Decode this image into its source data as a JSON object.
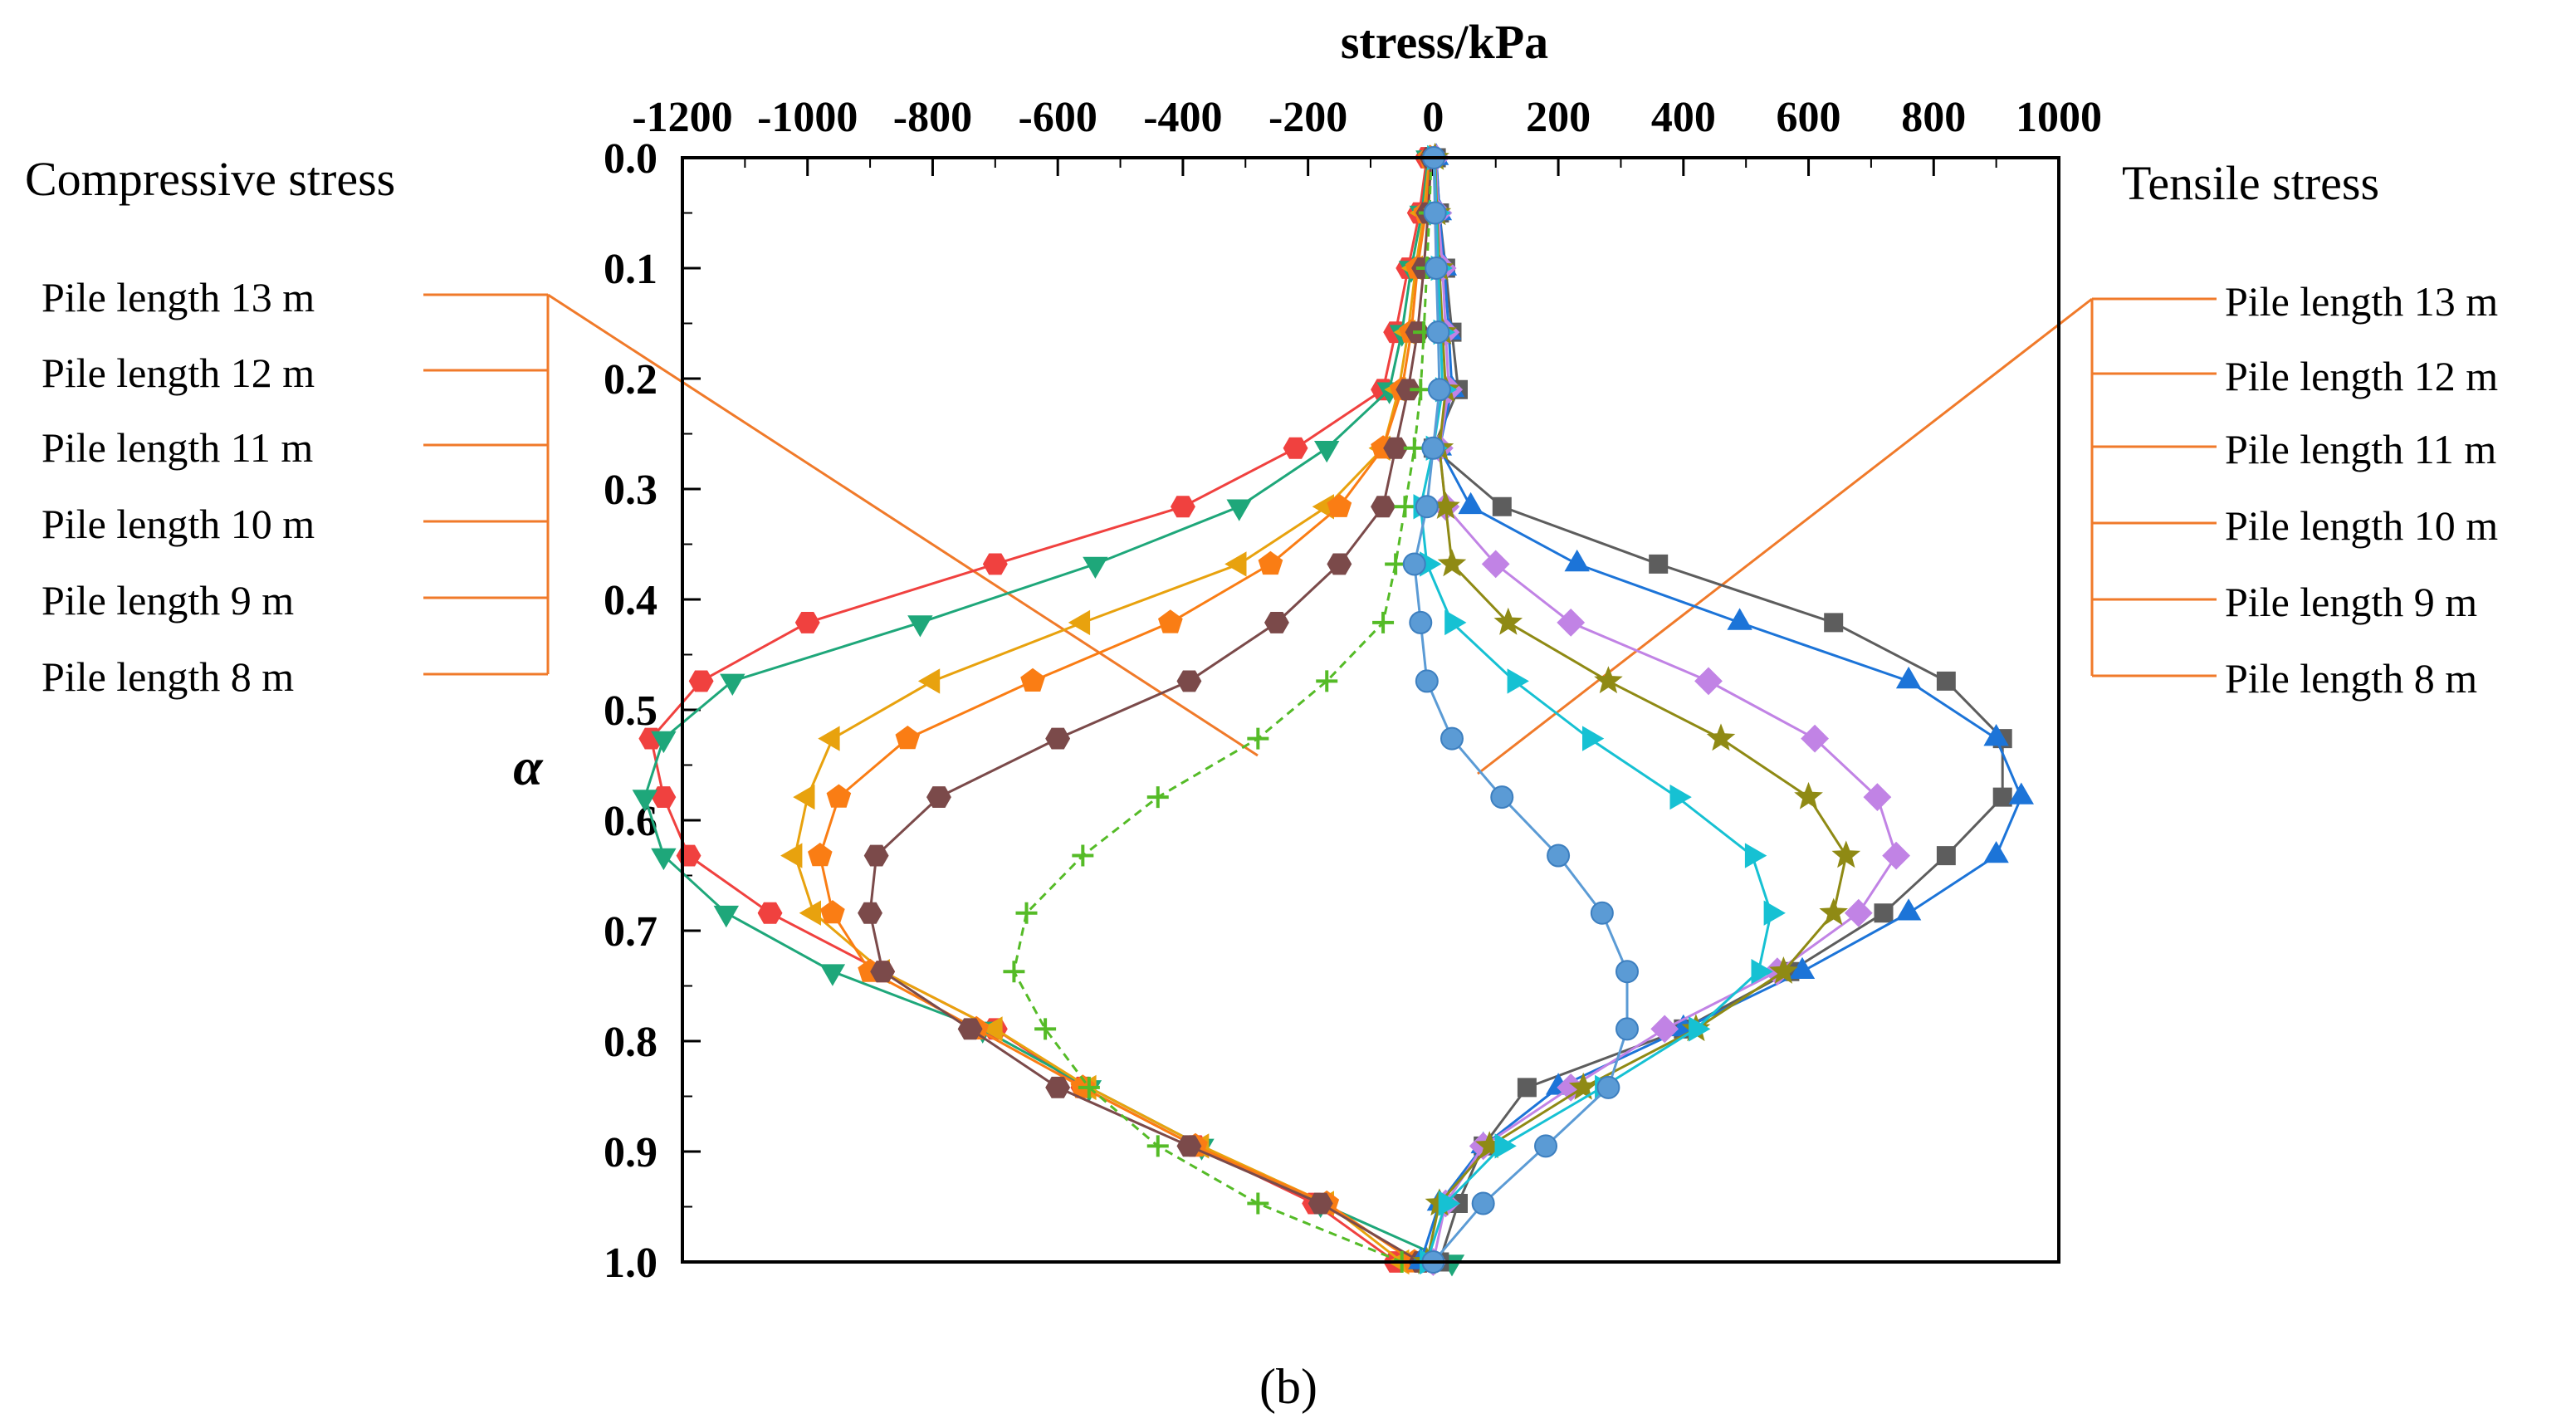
{
  "chart_data": {
    "type": "line",
    "title": "stress/kPa",
    "xlabel": "stress/kPa",
    "ylabel": "α",
    "xlim": [
      -1200,
      1000
    ],
    "ylim": [
      0.0,
      1.0
    ],
    "xticks": [
      "-1200",
      "-1000",
      "-800",
      "-600",
      "-400",
      "-200",
      "0",
      "200",
      "400",
      "600",
      "800",
      "1000"
    ],
    "yticks": [
      "0.0",
      "0.1",
      "0.2",
      "0.3",
      "0.4",
      "0.5",
      "0.6",
      "0.7",
      "0.8",
      "0.9",
      "1.0"
    ],
    "caption": "(b)",
    "left_group": {
      "heading": "Compressive stress",
      "entries": [
        "Pile length 13 m",
        "Pile length 12 m",
        "Pile length 11 m",
        "Pile length 10 m",
        "Pile length 9 m",
        "Pile length 8 m"
      ]
    },
    "right_group": {
      "heading": "Tensile stress",
      "entries": [
        "Pile length 13 m",
        "Pile length 12 m",
        "Pile length 11 m",
        "Pile length 10 m",
        "Pile length 9 m",
        "Pile length 8 m"
      ]
    },
    "series": [
      {
        "name": "Compressive stress, Pile length 13 m",
        "color": "#f0413f",
        "marker": "hexagon",
        "dash": false,
        "y": [
          0,
          0.05,
          0.1,
          0.158,
          0.21,
          0.263,
          0.316,
          0.368,
          0.421,
          0.474,
          0.526,
          0.579,
          0.632,
          0.684,
          0.737,
          0.789,
          0.842,
          0.895,
          0.947,
          1.0
        ],
        "x": [
          -10,
          -22,
          -40,
          -60,
          -80,
          -220,
          -400,
          -700,
          -1000,
          -1170,
          -1250,
          -1230,
          -1190,
          -1060,
          -880,
          -700,
          -560,
          -380,
          -190,
          -60
        ]
      },
      {
        "name": "Compressive stress, Pile length 12 m",
        "color": "#1ea77a",
        "marker": "triangle-down",
        "dash": false,
        "y": [
          0,
          0.05,
          0.1,
          0.158,
          0.21,
          0.263,
          0.316,
          0.368,
          0.421,
          0.474,
          0.526,
          0.579,
          0.632,
          0.684,
          0.737,
          0.789,
          0.842,
          0.895,
          0.947,
          1.0
        ],
        "x": [
          -8,
          -18,
          -35,
          -50,
          -70,
          -170,
          -310,
          -540,
          -820,
          -1120,
          -1230,
          -1260,
          -1230,
          -1130,
          -960,
          -720,
          -550,
          -370,
          -180,
          30
        ]
      },
      {
        "name": "Compressive stress, Pile length 11 m",
        "color": "#e8a20e",
        "marker": "triangle-left",
        "dash": false,
        "y": [
          0,
          0.05,
          0.1,
          0.158,
          0.21,
          0.263,
          0.316,
          0.368,
          0.421,
          0.474,
          0.526,
          0.579,
          0.632,
          0.684,
          0.737,
          0.789,
          0.842,
          0.895,
          0.947,
          1.0
        ],
        "x": [
          -6,
          -15,
          -28,
          -40,
          -55,
          -80,
          -170,
          -310,
          -560,
          -800,
          -960,
          -1000,
          -1020,
          -990,
          -880,
          -700,
          -550,
          -370,
          -170,
          -50
        ]
      },
      {
        "name": "Compressive stress, Pile length 10 m",
        "color": "#fa7d14",
        "marker": "pentagon",
        "dash": false,
        "y": [
          0,
          0.05,
          0.1,
          0.158,
          0.21,
          0.263,
          0.316,
          0.368,
          0.421,
          0.474,
          0.526,
          0.579,
          0.632,
          0.684,
          0.737,
          0.789,
          0.842,
          0.895,
          0.947,
          1.0
        ],
        "x": [
          -5,
          -12,
          -25,
          -35,
          -50,
          -80,
          -150,
          -260,
          -420,
          -640,
          -840,
          -950,
          -980,
          -960,
          -900,
          -730,
          -560,
          -380,
          -170,
          -30
        ]
      },
      {
        "name": "Compressive stress, Pile length 9 m",
        "color": "#7b4a4a",
        "marker": "hexagon",
        "dash": false,
        "y": [
          0,
          0.05,
          0.1,
          0.158,
          0.21,
          0.263,
          0.316,
          0.368,
          0.421,
          0.474,
          0.526,
          0.579,
          0.632,
          0.684,
          0.737,
          0.789,
          0.842,
          0.895,
          0.947,
          1.0
        ],
        "x": [
          -3,
          -8,
          -15,
          -25,
          -40,
          -60,
          -80,
          -150,
          -250,
          -390,
          -600,
          -790,
          -890,
          -900,
          -880,
          -740,
          -600,
          -390,
          -180,
          -20
        ]
      },
      {
        "name": "Compressive stress, Pile length 8 m",
        "color": "#55bb27",
        "marker": "plus",
        "dash": true,
        "y": [
          0,
          0.05,
          0.1,
          0.158,
          0.21,
          0.263,
          0.316,
          0.368,
          0.421,
          0.474,
          0.526,
          0.579,
          0.632,
          0.684,
          0.737,
          0.789,
          0.842,
          0.895,
          0.947,
          1.0
        ],
        "x": [
          -3,
          -6,
          -10,
          -15,
          -20,
          -30,
          -45,
          -60,
          -80,
          -170,
          -280,
          -440,
          -560,
          -650,
          -670,
          -620,
          -550,
          -440,
          -280,
          -50
        ]
      },
      {
        "name": "Tensile stress, Pile length 13 m",
        "color": "#5d5d5d",
        "marker": "square",
        "dash": false,
        "y": [
          0,
          0.05,
          0.1,
          0.158,
          0.21,
          0.263,
          0.316,
          0.368,
          0.421,
          0.474,
          0.526,
          0.579,
          0.632,
          0.684,
          0.737,
          0.789,
          0.842,
          0.895,
          0.947,
          1.0
        ],
        "x": [
          5,
          10,
          20,
          30,
          40,
          0,
          110,
          360,
          640,
          820,
          910,
          910,
          820,
          720,
          570,
          400,
          150,
          80,
          40,
          10
        ]
      },
      {
        "name": "Tensile stress, Pile length 12 m",
        "color": "#1c74d8",
        "marker": "triangle-up",
        "dash": false,
        "y": [
          0,
          0.05,
          0.1,
          0.158,
          0.21,
          0.263,
          0.316,
          0.368,
          0.421,
          0.474,
          0.526,
          0.579,
          0.632,
          0.684,
          0.737,
          0.789,
          0.842,
          0.895,
          0.947,
          1.0
        ],
        "x": [
          5,
          10,
          18,
          25,
          30,
          10,
          60,
          230,
          490,
          760,
          900,
          940,
          900,
          760,
          590,
          400,
          200,
          80,
          10,
          -20
        ]
      },
      {
        "name": "Tensile stress, Pile length 11 m",
        "color": "#c183e5",
        "marker": "diamond",
        "dash": false,
        "y": [
          0,
          0.05,
          0.1,
          0.158,
          0.21,
          0.263,
          0.316,
          0.368,
          0.421,
          0.474,
          0.526,
          0.579,
          0.632,
          0.684,
          0.737,
          0.789,
          0.842,
          0.895,
          0.947,
          1.0
        ],
        "x": [
          4,
          8,
          15,
          20,
          25,
          10,
          20,
          100,
          220,
          440,
          610,
          710,
          740,
          680,
          550,
          370,
          220,
          80,
          20,
          0
        ]
      },
      {
        "name": "Tensile stress, Pile length 10 m",
        "color": "#8f8a14",
        "marker": "star",
        "dash": false,
        "y": [
          0,
          0.05,
          0.1,
          0.158,
          0.21,
          0.263,
          0.316,
          0.368,
          0.421,
          0.474,
          0.526,
          0.579,
          0.632,
          0.684,
          0.737,
          0.789,
          0.842,
          0.895,
          0.947,
          1.0
        ],
        "x": [
          3,
          6,
          10,
          15,
          20,
          10,
          20,
          30,
          120,
          280,
          460,
          600,
          660,
          640,
          560,
          420,
          240,
          90,
          10,
          -10
        ]
      },
      {
        "name": "Tensile stress, Pile length 9 m",
        "color": "#16c1d3",
        "marker": "triangle-right",
        "dash": false,
        "y": [
          0,
          0.05,
          0.1,
          0.158,
          0.21,
          0.263,
          0.316,
          0.368,
          0.421,
          0.474,
          0.526,
          0.579,
          0.632,
          0.684,
          0.737,
          0.789,
          0.842,
          0.895,
          0.947,
          1.0
        ],
        "x": [
          2,
          5,
          8,
          12,
          15,
          0,
          -20,
          -10,
          30,
          130,
          250,
          390,
          510,
          540,
          520,
          420,
          270,
          110,
          20,
          -10
        ]
      },
      {
        "name": "Tensile stress, Pile length 8 m",
        "color": "#5b9bd5",
        "marker": "sphere",
        "dash": false,
        "y": [
          0,
          0.05,
          0.1,
          0.158,
          0.21,
          0.263,
          0.316,
          0.368,
          0.421,
          0.474,
          0.526,
          0.579,
          0.632,
          0.684,
          0.737,
          0.789,
          0.842,
          0.895,
          0.947,
          1.0
        ],
        "x": [
          1,
          3,
          5,
          8,
          10,
          0,
          -10,
          -30,
          -20,
          -10,
          30,
          110,
          200,
          270,
          310,
          310,
          280,
          180,
          80,
          0
        ]
      }
    ]
  }
}
